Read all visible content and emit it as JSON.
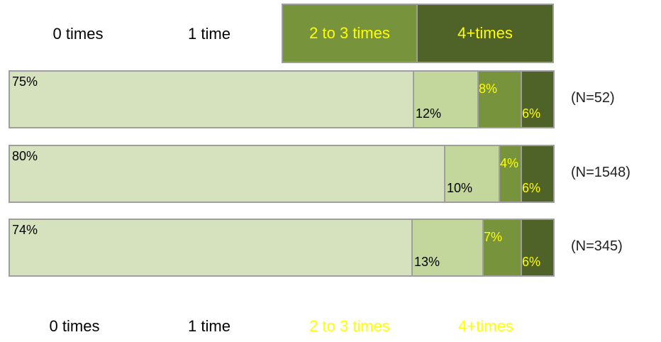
{
  "chart_data": {
    "type": "bar",
    "orientation": "horizontal",
    "stacked": true,
    "percent": true,
    "categories": [
      "(N=52)",
      "(N=1548)",
      "(N=345)"
    ],
    "series": [
      {
        "name": "0 times",
        "values": [
          75,
          80,
          74
        ],
        "labels": [
          "75%",
          "80%",
          "74%"
        ],
        "color": "#d6e2bd",
        "label_color": "#000000"
      },
      {
        "name": "1 time",
        "values": [
          12,
          10,
          13
        ],
        "labels": [
          "12%",
          "10%",
          "13%"
        ],
        "color": "#c3d69b",
        "label_color": "#000000"
      },
      {
        "name": "2 to 3 times",
        "values": [
          8,
          4,
          7
        ],
        "labels": [
          "8%",
          "4%",
          "7%"
        ],
        "color": "#77933c",
        "label_color": "#ffff00"
      },
      {
        "name": "4+times",
        "values": [
          6,
          6,
          6
        ],
        "labels": [
          "6%",
          "6%",
          "6%"
        ],
        "color": "#4f6228",
        "label_color": "#ffff00"
      }
    ],
    "legend_top": {
      "placement": "top",
      "items": [
        {
          "label": "0 times",
          "fill": "",
          "text_color": "#000000"
        },
        {
          "label": "1 time",
          "fill": "",
          "text_color": "#000000"
        },
        {
          "label": "2 to 3 times",
          "fill": "#77933c",
          "text_color": "#ffff00"
        },
        {
          "label": "4+times",
          "fill": "#4f6228",
          "text_color": "#ffff00"
        }
      ]
    },
    "legend_bottom": {
      "placement": "bottom",
      "items": [
        {
          "label": "0 times",
          "text_color": "#000000"
        },
        {
          "label": "1 time",
          "text_color": "#000000"
        },
        {
          "label": "2 to 3 times",
          "text_color": "#ffff00"
        },
        {
          "label": "4+times",
          "text_color": "#ffff00"
        }
      ]
    }
  }
}
